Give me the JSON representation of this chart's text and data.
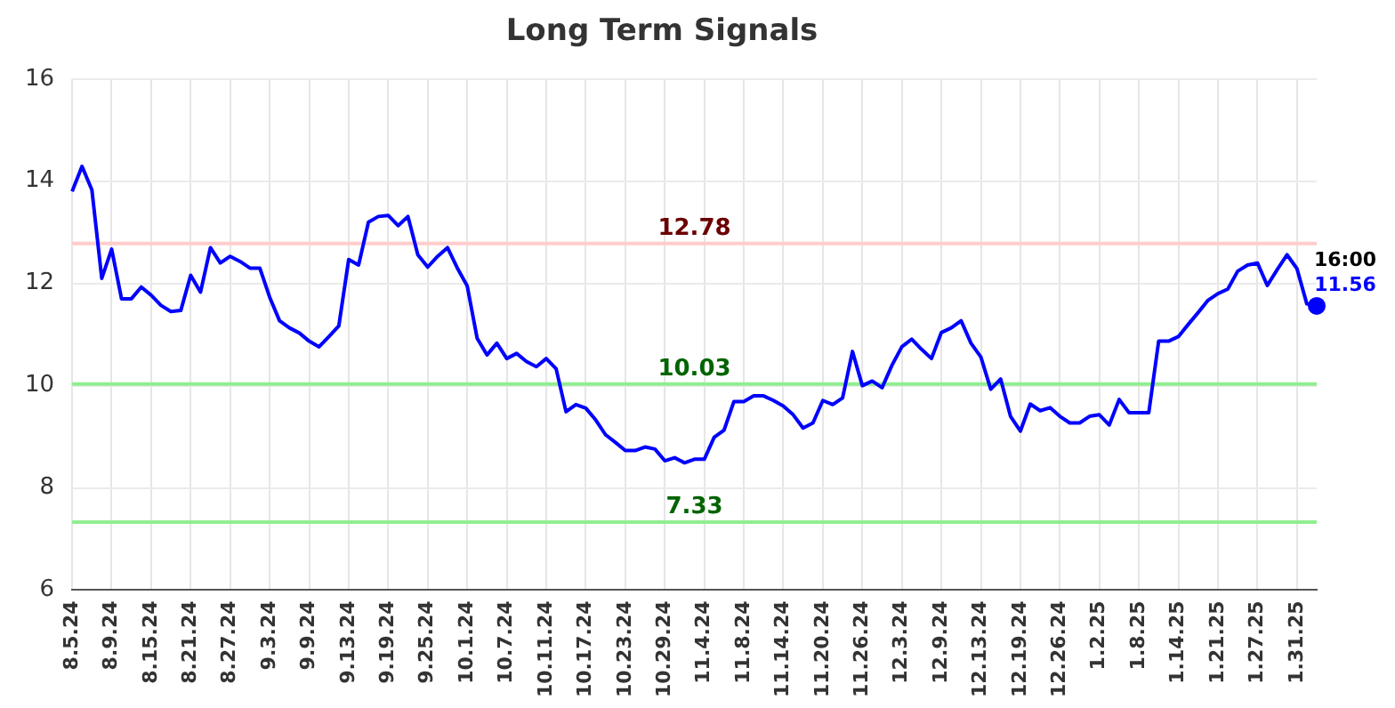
{
  "chart_data": {
    "type": "line",
    "title": "Long Term Signals",
    "categories": [
      "8.5.24",
      null,
      null,
      null,
      "8.9.24",
      null,
      null,
      null,
      "8.15.24",
      null,
      null,
      null,
      "8.21.24",
      null,
      null,
      null,
      "8.27.24",
      null,
      null,
      null,
      "9.3.24",
      null,
      null,
      null,
      "9.9.24",
      null,
      null,
      null,
      "9.13.24",
      null,
      null,
      null,
      "9.19.24",
      null,
      null,
      null,
      "9.25.24",
      null,
      null,
      null,
      "10.1.24",
      null,
      null,
      null,
      "10.7.24",
      null,
      null,
      null,
      "10.11.24",
      null,
      null,
      null,
      "10.17.24",
      null,
      null,
      null,
      "10.23.24",
      null,
      null,
      null,
      "10.29.24",
      null,
      null,
      null,
      "11.4.24",
      null,
      null,
      null,
      "11.8.24",
      null,
      null,
      null,
      "11.14.24",
      null,
      null,
      null,
      "11.20.24",
      null,
      null,
      null,
      "11.26.24",
      null,
      null,
      null,
      "12.3.24",
      null,
      null,
      null,
      "12.9.24",
      null,
      null,
      null,
      "12.13.24",
      null,
      null,
      null,
      "12.19.24",
      null,
      null,
      null,
      "12.26.24",
      null,
      null,
      null,
      "1.2.25",
      null,
      null,
      null,
      "1.8.25",
      null,
      null,
      null,
      "1.14.25",
      null,
      null,
      null,
      "1.21.25",
      null,
      null,
      null,
      "1.27.25",
      null,
      null,
      null,
      "1.31.25",
      null,
      null
    ],
    "series": [
      {
        "color": "#0000ff",
        "values": [
          13.8,
          14.29,
          13.83,
          12.1,
          12.67,
          11.7,
          11.7,
          11.93,
          11.77,
          11.57,
          11.45,
          11.47,
          12.16,
          11.83,
          12.7,
          12.4,
          12.53,
          12.43,
          12.3,
          12.3,
          11.73,
          11.27,
          11.13,
          11.03,
          10.87,
          10.76,
          10.96,
          11.17,
          12.47,
          12.36,
          13.2,
          13.31,
          13.33,
          13.13,
          13.31,
          12.56,
          12.32,
          12.53,
          12.7,
          12.3,
          11.95,
          10.93,
          10.6,
          10.83,
          10.53,
          10.63,
          10.47,
          10.37,
          10.53,
          10.33,
          9.49,
          9.63,
          9.56,
          9.33,
          9.04,
          8.89,
          8.73,
          8.73,
          8.8,
          8.76,
          8.53,
          8.59,
          8.49,
          8.56,
          8.56,
          8.99,
          9.13,
          9.69,
          9.69,
          9.8,
          9.8,
          9.71,
          9.6,
          9.43,
          9.17,
          9.27,
          9.71,
          9.63,
          9.76,
          10.67,
          10.0,
          10.09,
          9.96,
          10.4,
          10.76,
          10.91,
          10.71,
          10.53,
          11.04,
          11.13,
          11.27,
          10.83,
          10.56,
          9.93,
          10.13,
          9.4,
          9.11,
          9.64,
          9.51,
          9.57,
          9.4,
          9.27,
          9.27,
          9.4,
          9.43,
          9.23,
          9.73,
          9.47,
          9.47,
          9.47,
          10.87,
          10.87,
          10.96,
          11.2,
          11.43,
          11.67,
          11.8,
          11.89,
          12.24,
          12.36,
          12.4,
          11.96,
          12.27,
          12.56,
          12.29,
          11.6,
          11.56
        ],
        "value_labels": [
          null,
          null,
          null,
          null,
          null,
          null,
          null,
          null,
          null,
          null,
          null,
          null,
          null,
          null,
          null,
          null,
          null,
          null,
          null,
          null,
          null,
          null,
          null,
          null,
          null,
          null,
          null,
          null,
          null,
          null,
          null,
          null,
          null,
          null,
          null,
          null,
          null,
          null,
          null,
          null,
          null,
          null,
          null,
          null,
          null,
          null,
          null,
          null,
          null,
          null,
          null,
          null,
          null,
          null,
          null,
          null,
          null,
          null,
          null,
          null,
          null,
          null,
          null,
          null,
          null,
          null,
          null,
          null,
          null,
          null,
          null,
          null,
          null,
          null,
          null,
          null,
          null,
          null,
          null,
          null,
          null,
          null,
          null,
          null,
          null,
          null,
          null,
          null,
          null,
          null,
          null,
          null,
          null,
          null,
          null,
          null,
          null,
          null,
          null,
          null,
          null,
          null,
          null,
          null,
          null,
          null,
          null,
          null,
          null,
          null,
          null,
          null,
          null,
          null,
          null,
          null,
          null,
          null,
          null,
          null,
          null,
          null,
          null,
          null,
          null,
          null,
          "11.56"
        ]
      }
    ],
    "ylim": [
      6,
      16
    ],
    "yticks": [
      6,
      8,
      10,
      12,
      14,
      16
    ],
    "ref_lines": [
      {
        "axis": "y",
        "value": 12.78,
        "label": "12.78",
        "color": "#ffcccc"
      },
      {
        "axis": "y",
        "value": 10.03,
        "label": "10.03",
        "color": "#90ee90"
      },
      {
        "axis": "y",
        "value": 7.33,
        "label": "7.33",
        "color": "#90ee90"
      }
    ],
    "annotations": [
      "16:00"
    ],
    "grid": true,
    "legend": false,
    "marker": "none",
    "line_style": "solid"
  }
}
